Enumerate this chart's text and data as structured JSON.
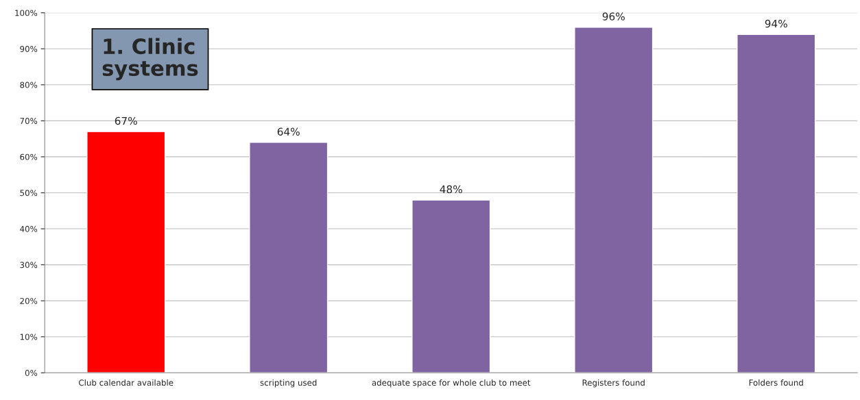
{
  "chart_data": {
    "type": "bar",
    "categories": [
      "Club calendar available",
      "scripting used",
      "adequate space for whole club to meet",
      "Registers found",
      "Folders found"
    ],
    "values": [
      67,
      64,
      48,
      96,
      94
    ],
    "colors": [
      "#ff0000",
      "#8064a2",
      "#8064a2",
      "#8064a2",
      "#8064a2"
    ],
    "value_labels": [
      "67%",
      "64%",
      "48%",
      "96%",
      "94%"
    ],
    "ylim": [
      0,
      100
    ],
    "yticks": [
      {
        "value": 0,
        "label": "0%"
      },
      {
        "value": 10,
        "label": "10%"
      },
      {
        "value": 20,
        "label": "20%"
      },
      {
        "value": 30,
        "label": "30%"
      },
      {
        "value": 40,
        "label": "40%"
      },
      {
        "value": 50,
        "label": "50%"
      },
      {
        "value": 60,
        "label": "60%"
      },
      {
        "value": 70,
        "label": "70%"
      },
      {
        "value": 80,
        "label": "80%"
      },
      {
        "value": 90,
        "label": "90%"
      },
      {
        "value": 100,
        "label": "100%"
      }
    ],
    "grid": "y",
    "annotations": [
      "1. Clinic\nsystems"
    ]
  }
}
